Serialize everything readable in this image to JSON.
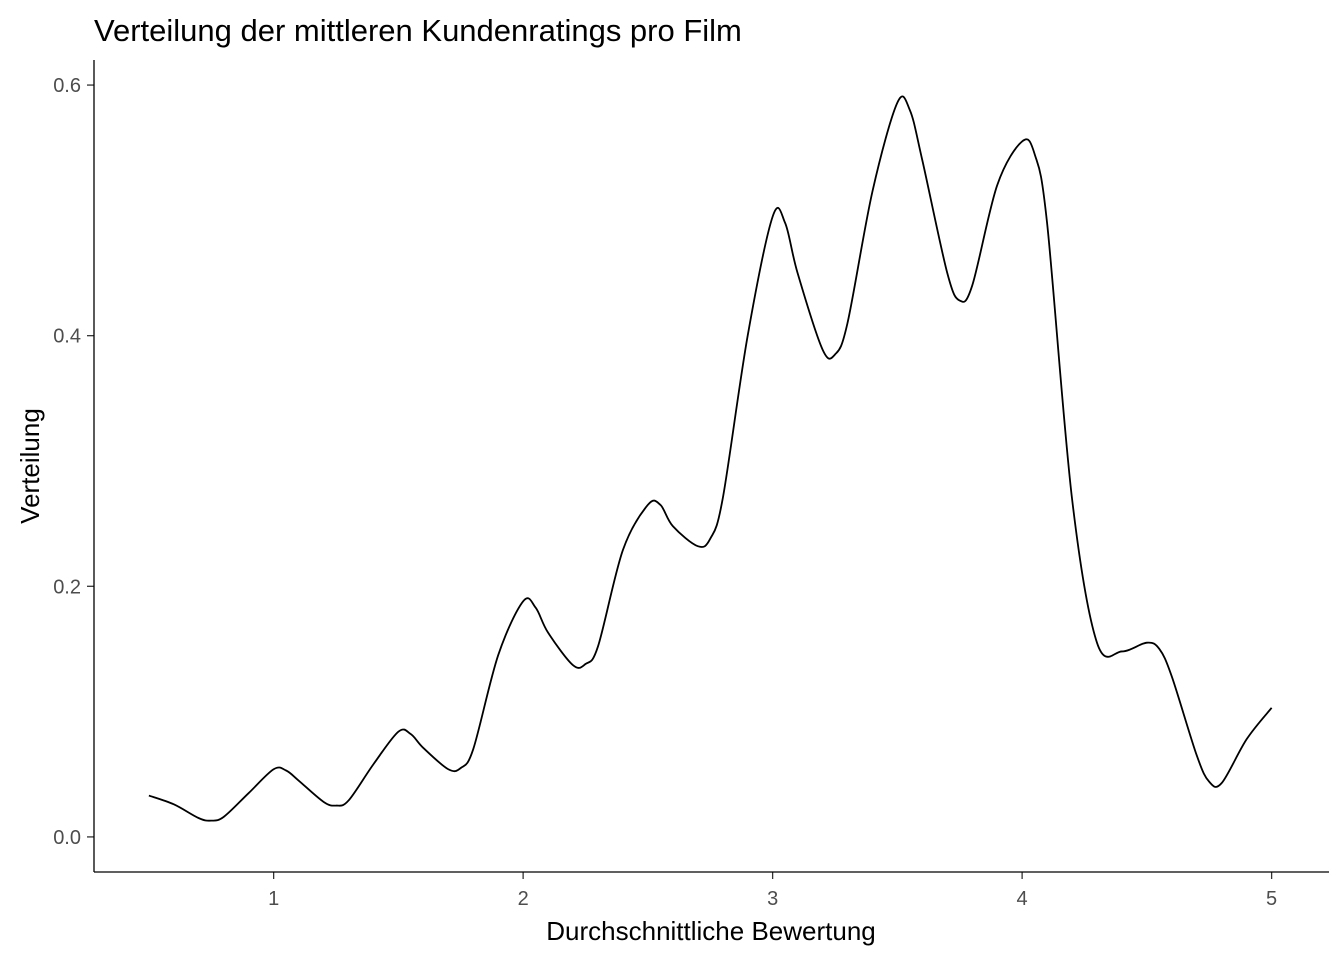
{
  "chart_data": {
    "type": "line",
    "title": "Verteilung der mittleren Kundenratings pro Film",
    "xlabel": "Durchschnittliche Bewertung",
    "ylabel": "Verteilung",
    "xlim": [
      0.28,
      5.23
    ],
    "ylim": [
      -0.028,
      0.62
    ],
    "xticks": [
      1,
      2,
      3,
      4,
      5
    ],
    "xtick_labels": [
      "1",
      "2",
      "3",
      "4",
      "5"
    ],
    "yticks": [
      0.0,
      0.2,
      0.4,
      0.6
    ],
    "ytick_labels": [
      "0.0",
      "0.2",
      "0.4",
      "0.6"
    ],
    "grid": false,
    "line_color": "#000000",
    "series": [
      {
        "x": [
          0.5,
          0.6,
          0.7,
          0.75,
          0.8,
          0.9,
          1.0,
          1.05,
          1.1,
          1.2,
          1.25,
          1.3,
          1.4,
          1.5,
          1.55,
          1.6,
          1.7,
          1.75,
          1.8,
          1.9,
          2.0,
          2.05,
          2.1,
          2.2,
          2.25,
          2.3,
          2.4,
          2.5,
          2.55,
          2.6,
          2.7,
          2.75,
          2.8,
          2.9,
          3.0,
          3.05,
          3.1,
          3.2,
          3.25,
          3.3,
          3.4,
          3.5,
          3.55,
          3.6,
          3.7,
          3.75,
          3.8,
          3.9,
          4.0,
          4.05,
          4.1,
          4.2,
          4.3,
          4.4,
          4.5,
          4.55,
          4.6,
          4.7,
          4.75,
          4.8,
          4.9,
          5.0
        ],
        "y": [
          0.033,
          0.026,
          0.015,
          0.013,
          0.016,
          0.035,
          0.054,
          0.053,
          0.045,
          0.028,
          0.025,
          0.029,
          0.058,
          0.084,
          0.082,
          0.071,
          0.054,
          0.055,
          0.07,
          0.145,
          0.188,
          0.183,
          0.163,
          0.137,
          0.138,
          0.152,
          0.229,
          0.265,
          0.265,
          0.248,
          0.232,
          0.238,
          0.27,
          0.4,
          0.495,
          0.49,
          0.45,
          0.389,
          0.385,
          0.41,
          0.515,
          0.586,
          0.58,
          0.54,
          0.45,
          0.428,
          0.44,
          0.52,
          0.555,
          0.545,
          0.49,
          0.27,
          0.155,
          0.148,
          0.155,
          0.15,
          0.128,
          0.065,
          0.044,
          0.043,
          0.078,
          0.103
        ]
      }
    ]
  }
}
